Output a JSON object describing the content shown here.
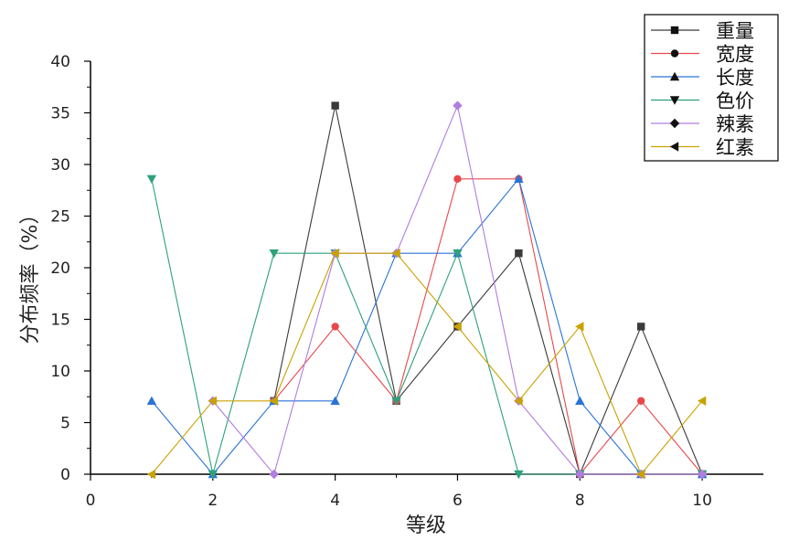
{
  "chart_data": {
    "type": "line",
    "xlabel": "等级",
    "ylabel": "分布频率（%）",
    "xlim": [
      0,
      11
    ],
    "ylim": [
      0,
      40
    ],
    "x_ticks": [
      0,
      2,
      4,
      6,
      8,
      10
    ],
    "y_ticks": [
      0,
      5,
      10,
      15,
      20,
      25,
      30,
      35,
      40
    ],
    "grid": false,
    "legend_position": "top-right",
    "x": [
      1,
      2,
      3,
      4,
      5,
      6,
      7,
      8,
      9,
      10
    ],
    "series": [
      {
        "name": "重量",
        "color": "#3a3a3a",
        "marker": "square",
        "values": [
          null,
          null,
          7.1,
          35.7,
          7.1,
          14.3,
          21.4,
          0,
          14.3,
          0
        ]
      },
      {
        "name": "宽度",
        "color": "#e8484c",
        "marker": "circle",
        "values": [
          null,
          null,
          7.1,
          14.3,
          7.1,
          28.6,
          28.6,
          0,
          7.1,
          0
        ]
      },
      {
        "name": "长度",
        "color": "#2a73d6",
        "marker": "triangle-up",
        "values": [
          7.1,
          0,
          7.1,
          7.1,
          21.4,
          21.4,
          28.6,
          7.1,
          0,
          0
        ]
      },
      {
        "name": "色价",
        "color": "#2ea07a",
        "marker": "triangle-down",
        "values": [
          28.6,
          0,
          21.4,
          21.4,
          7.1,
          21.4,
          0,
          0,
          0,
          0
        ]
      },
      {
        "name": "辣素",
        "color": "#b07de0",
        "marker": "diamond",
        "values": [
          null,
          7.1,
          0,
          21.4,
          21.4,
          35.7,
          7.1,
          0,
          0,
          0
        ]
      },
      {
        "name": "红素",
        "color": "#c9a200",
        "marker": "triangle-left",
        "values": [
          0,
          7.1,
          7.1,
          21.4,
          21.4,
          14.3,
          7.1,
          14.3,
          0,
          7.1
        ]
      }
    ]
  }
}
